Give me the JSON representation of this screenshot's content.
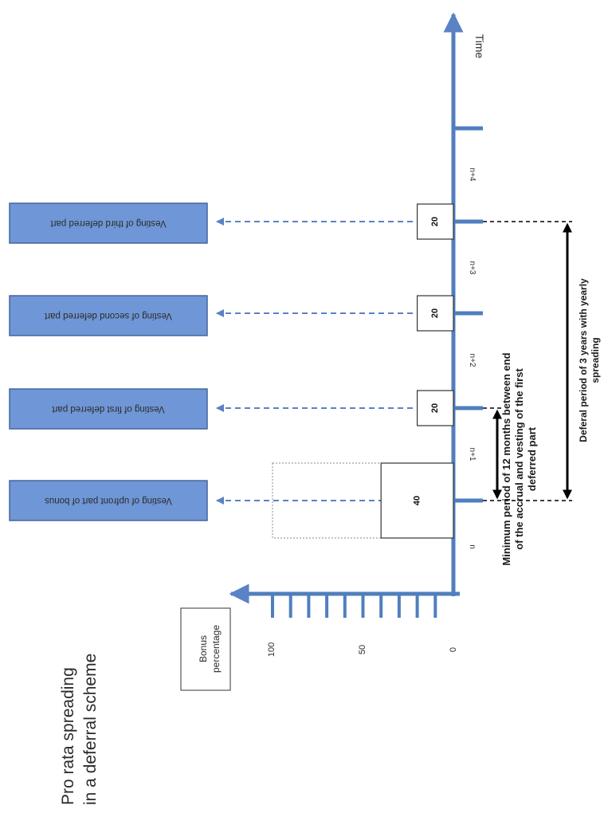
{
  "title": {
    "line1": "Pro rata spreading",
    "line2": "in a deferral scheme"
  },
  "y_axis": {
    "label_line1": "Bonus",
    "label_line2": "percentage",
    "ticks": [
      "0",
      "50",
      "100"
    ]
  },
  "x_axis": {
    "label": "Time",
    "periods": [
      "n",
      "n+1",
      "n+2",
      "n+3",
      "n+4"
    ]
  },
  "vesting_boxes": [
    "Vesting of upfront part of bonus",
    "Vesting of first deferred part",
    "Vesting of second deferred part",
    "Vesting of third deferred part"
  ],
  "bars": [
    {
      "value": 40,
      "label": "40",
      "total": 100
    },
    {
      "value": 20,
      "label": "20"
    },
    {
      "value": 20,
      "label": "20"
    },
    {
      "value": 20,
      "label": "20"
    }
  ],
  "annotations": {
    "min_period": [
      "Minimum period of 12 months between end",
      "of the accrual and vesting of the first",
      "deferred part"
    ],
    "deferral_period": [
      "Deferal period of 3 years with yearly",
      "spreading"
    ]
  },
  "colors": {
    "axis": "#4f7fbe",
    "box_fill": "#6f96d6",
    "box_border": "#44679d",
    "dash": "#5a82c4"
  }
}
